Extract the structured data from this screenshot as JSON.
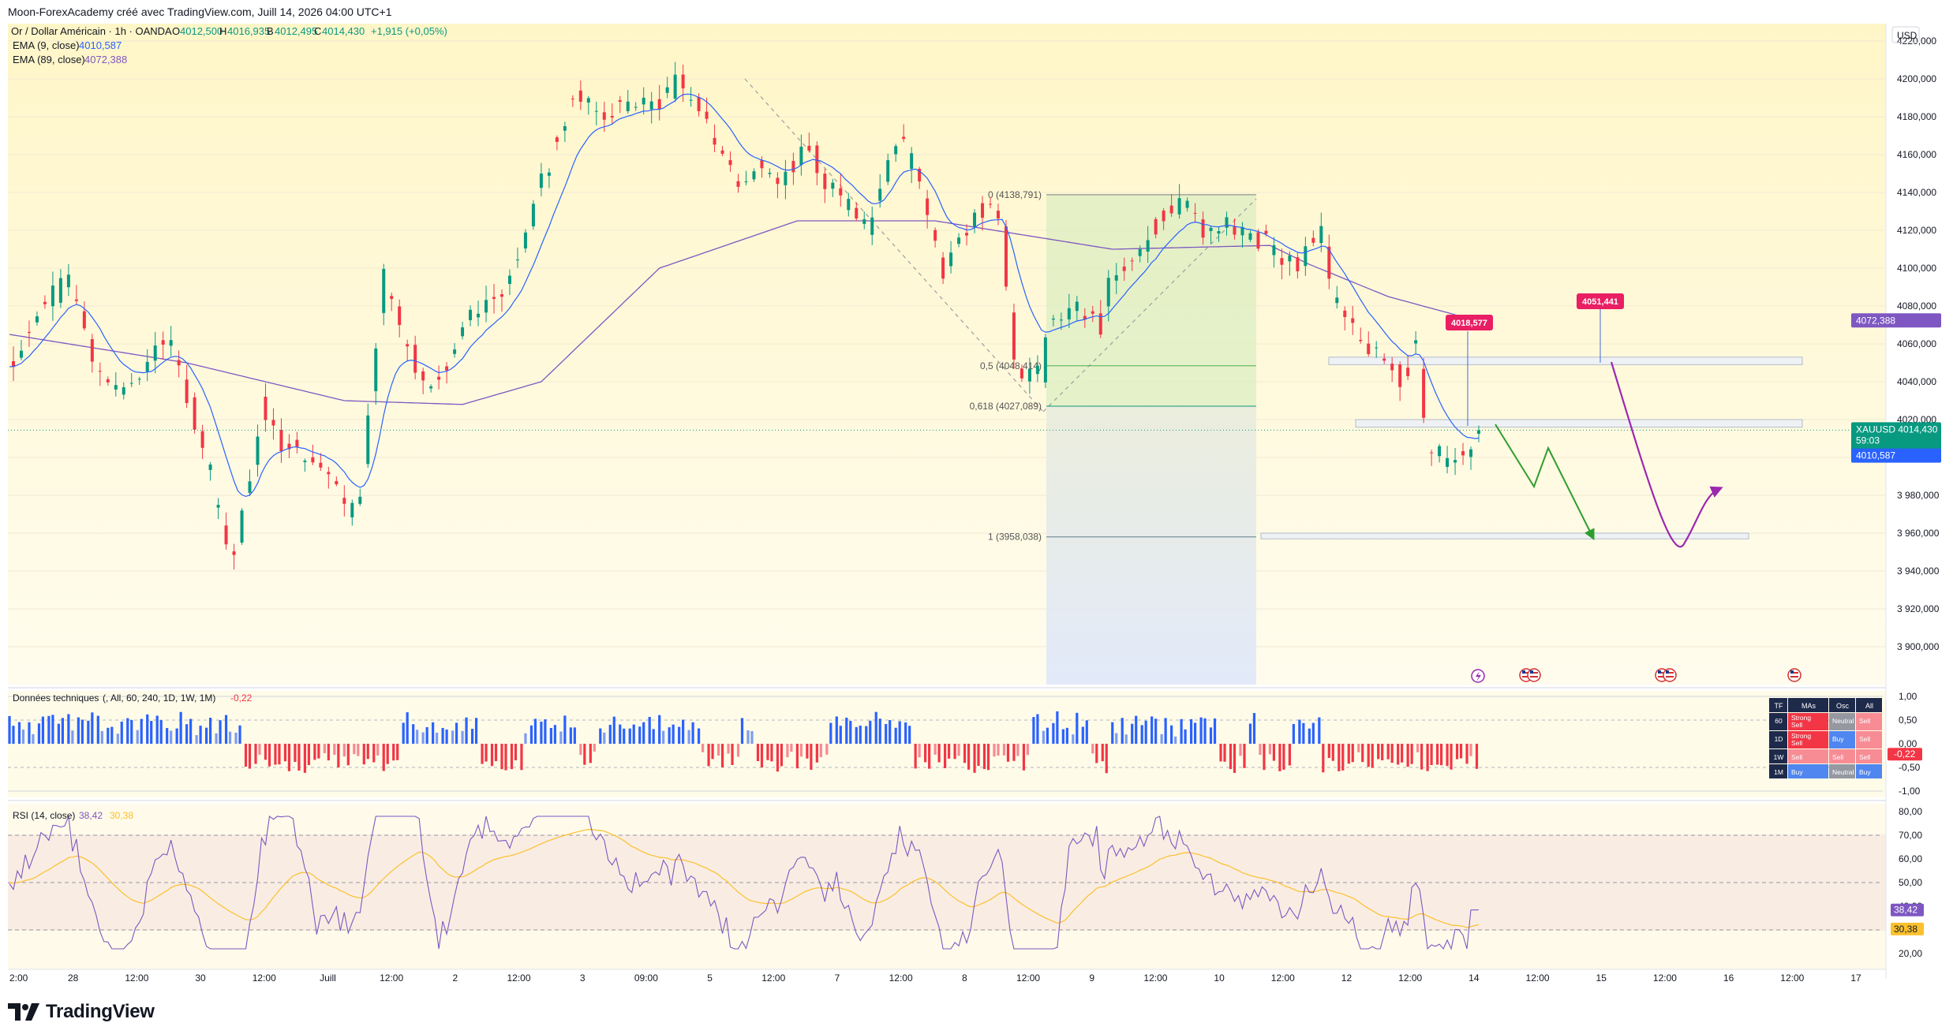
{
  "header": {
    "credit": "Moon-ForexAcademy créé avec TradingView.com, Juill 14, 2026 04:00 UTC+1"
  },
  "legend": {
    "symbol": "Or / Dollar Américain · 1h · OANDA",
    "o_label": "O",
    "o_value": "4012,500",
    "h_label": "H",
    "h_value": "4016,935",
    "b_label": "B",
    "b_value": "4012,495",
    "c_label": "C",
    "c_value": "4014,430",
    "change": "+1,915 (+0,05%)",
    "ema9_label": "EMA (9, close)",
    "ema9_value": "4010,587",
    "ema89_label": "EMA (89, close)",
    "ema89_value": "4072,388"
  },
  "currency": "USD",
  "colors": {
    "up": "#089981",
    "down": "#f23645",
    "ema9": "#2962ff",
    "ema89": "#7e57c2",
    "rsi": "#7e57c2",
    "rsi_ma": "#fbc02d",
    "green_arrow": "#2e9d2e",
    "purple_arrow": "#9c27b0",
    "price_tag": "#089981",
    "callout": "#e91e63"
  },
  "branding": {
    "name": "TradingView"
  },
  "chart_data": [
    {
      "type": "candlestick",
      "symbol": "XAUUSD",
      "ylim": [
        3880,
        4230
      ],
      "y_ticks": [
        "3 900,000",
        "3 920,000",
        "3 940,000",
        "3 960,000",
        "3 980,000",
        "4000,000",
        "4020,000",
        "4040,000",
        "4060,000",
        "4080,000",
        "4100,000",
        "4120,000",
        "4140,000",
        "4160,000",
        "4180,000",
        "4200,000",
        "4220,000"
      ],
      "x_ticks": [
        "2:00",
        "28",
        "12:00",
        "30",
        "12:00",
        "Juill",
        "12:00",
        "2",
        "12:00",
        "3",
        "09:00",
        "5",
        "12:00",
        "7",
        "12:00",
        "8",
        "12:00",
        "9",
        "12:00",
        "10",
        "12:00",
        "12",
        "12:00",
        "14",
        "12:00",
        "15",
        "12:00",
        "16",
        "12:00",
        "17"
      ],
      "last_price": {
        "symbol": "XAUUSD",
        "value": "4014,430",
        "countdown": "59:03"
      },
      "ema9_tag": "4010,587",
      "ema89_tag": "4072,388",
      "callouts": [
        "4018,577",
        "4051,441"
      ],
      "fibonacci": [
        {
          "label": "0 (4138,791)",
          "value": 4138.791
        },
        {
          "label": "0,5 (4048,414)",
          "value": 4048.414
        },
        {
          "label": "0,618 (4027,089)",
          "value": 4027.089
        },
        {
          "label": "1 (3958,038)",
          "value": 3958.038
        }
      ],
      "zones": [
        {
          "from": 4049,
          "to": 4053
        },
        {
          "from": 4016,
          "to": 4020
        },
        {
          "from": 3957,
          "to": 3960
        }
      ],
      "series": [
        {
          "name": "EMA (9, close)"
        },
        {
          "name": "EMA (89, close)"
        }
      ],
      "keypoints": [
        [
          0,
          4048
        ],
        [
          18,
          4082
        ],
        [
          30,
          4095
        ],
        [
          48,
          4038
        ],
        [
          60,
          4035
        ],
        [
          82,
          4064
        ],
        [
          100,
          4000
        ],
        [
          108,
          3960
        ],
        [
          115,
          3948
        ],
        [
          128,
          4028
        ],
        [
          136,
          4012
        ],
        [
          150,
          4003
        ],
        [
          162,
          3993
        ],
        [
          172,
          3968
        ],
        [
          178,
          3975
        ],
        [
          190,
          4095
        ],
        [
          203,
          4055
        ],
        [
          215,
          4035
        ],
        [
          232,
          4075
        ],
        [
          252,
          4088
        ],
        [
          268,
          4140
        ],
        [
          287,
          4192
        ],
        [
          300,
          4180
        ],
        [
          310,
          4186
        ],
        [
          330,
          4188
        ],
        [
          340,
          4200
        ],
        [
          356,
          4175
        ],
        [
          370,
          4148
        ],
        [
          384,
          4152
        ],
        [
          392,
          4145
        ],
        [
          404,
          4168
        ],
        [
          418,
          4142
        ],
        [
          424,
          4133
        ],
        [
          436,
          4122
        ],
        [
          450,
          4170
        ],
        [
          462,
          4148
        ],
        [
          474,
          4100
        ],
        [
          492,
          4130
        ],
        [
          503,
          4128
        ],
        [
          510,
          4050
        ],
        [
          516,
          4040
        ],
        [
          524,
          4045
        ],
        [
          528,
          4073
        ],
        [
          537,
          4078
        ],
        [
          550,
          4080
        ],
        [
          554,
          4068
        ],
        [
          560,
          4098
        ],
        [
          574,
          4108
        ],
        [
          584,
          4125
        ],
        [
          596,
          4135
        ],
        [
          605,
          4120
        ],
        [
          620,
          4124
        ],
        [
          638,
          4112
        ],
        [
          652,
          4100
        ],
        [
          660,
          4112
        ],
        [
          666,
          4119
        ],
        [
          672,
          4085
        ],
        [
          686,
          4060
        ],
        [
          698,
          4050
        ],
        [
          708,
          4040
        ],
        [
          714,
          4065
        ],
        [
          720,
          4005
        ],
        [
          730,
          3998
        ],
        [
          740,
          4005
        ],
        [
          746,
          4012
        ]
      ],
      "ema89_keypoints": [
        [
          0,
          4065
        ],
        [
          90,
          4050
        ],
        [
          170,
          4030
        ],
        [
          230,
          4028
        ],
        [
          270,
          4040
        ],
        [
          330,
          4100
        ],
        [
          400,
          4125
        ],
        [
          470,
          4125
        ],
        [
          560,
          4110
        ],
        [
          640,
          4112
        ],
        [
          660,
          4102
        ],
        [
          700,
          4085
        ],
        [
          746,
          4072
        ]
      ]
    },
    {
      "type": "bar",
      "title": "Données techniques",
      "params": "(, All, 60, 240, 1D, 1W, 1M)",
      "value": "-0,22",
      "ylim": [
        -1,
        1
      ],
      "y_ticks": [
        "1,00",
        "0,50",
        "0,00",
        "-0,50",
        "-1,00"
      ],
      "value_tag": "-0,22",
      "table": {
        "headers": [
          "TF",
          "MAs",
          "Osc",
          "All"
        ],
        "rows": [
          [
            "60",
            "Strong Sell",
            "Neutral",
            "Sell"
          ],
          [
            "1D",
            "Strong Sell",
            "Buy",
            "Sell"
          ],
          [
            "1W",
            "Sell",
            "Sell",
            "Sell"
          ],
          [
            "1M",
            "Buy",
            "Neutral",
            "Buy"
          ]
        ]
      }
    },
    {
      "type": "line",
      "title": "RSI (14, close)",
      "value": "38,42",
      "ma_value": "30,38",
      "ylim": [
        15,
        82
      ],
      "y_ticks": [
        "80,00",
        "70,00",
        "60,00",
        "50,00",
        "40,00",
        "30,00",
        "20,00"
      ],
      "levels": [
        70,
        50,
        30
      ]
    }
  ]
}
